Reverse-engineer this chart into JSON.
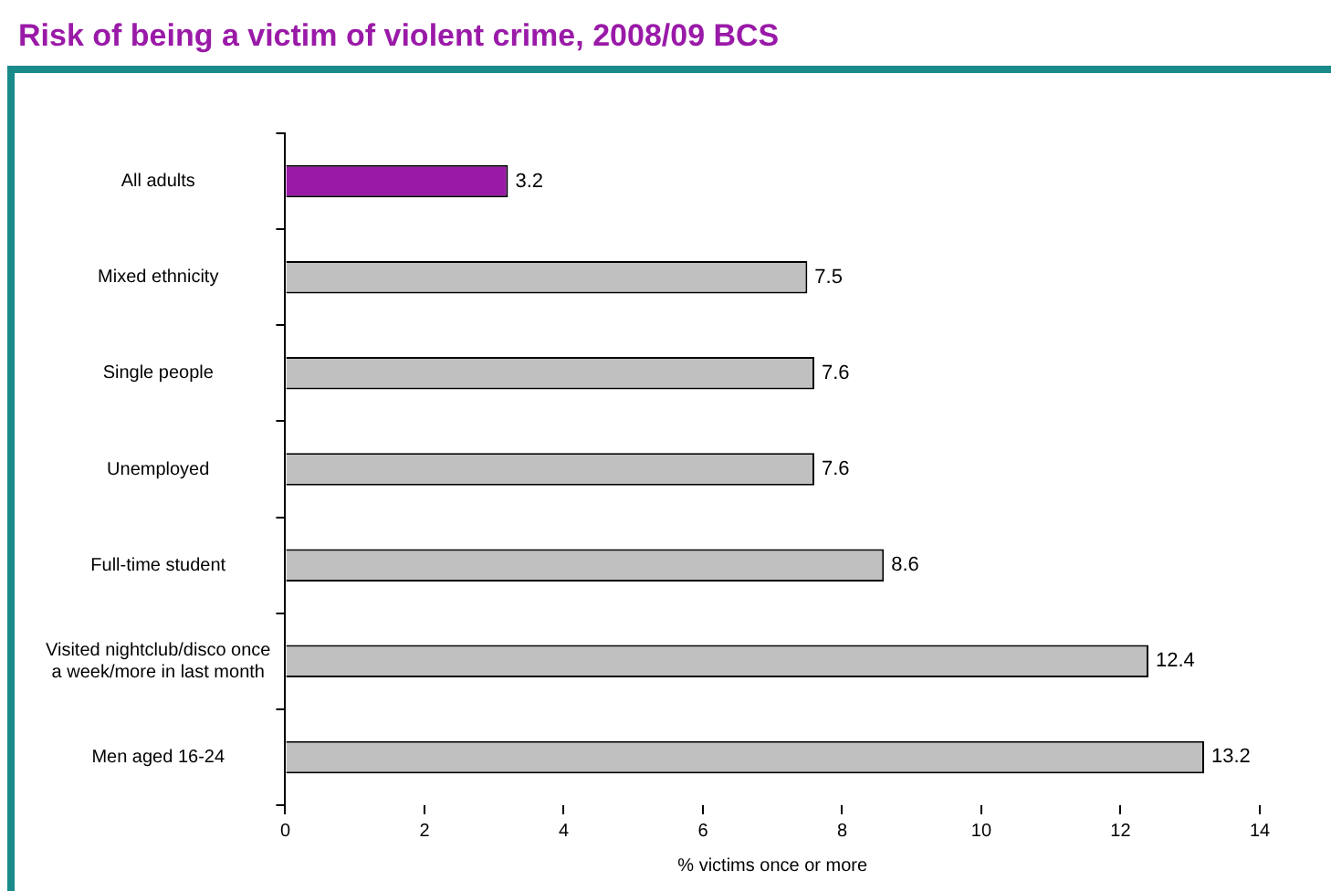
{
  "chart_data": {
    "type": "bar",
    "orientation": "horizontal",
    "title": "Risk of being a victim of violent crime, 2008/09 BCS",
    "xlabel": "% victims once or more",
    "categories": [
      "All adults",
      "Mixed ethnicity",
      "Single people",
      "Unemployed",
      "Full-time student",
      "Visited nightclub/disco once\na week/more in last month",
      "Men aged 16-24"
    ],
    "values": [
      3.2,
      7.5,
      7.6,
      7.6,
      8.6,
      12.4,
      13.2
    ],
    "colors": [
      "#9a1aa8",
      "#c0c0c0",
      "#c0c0c0",
      "#c0c0c0",
      "#c0c0c0",
      "#c0c0c0",
      "#c0c0c0"
    ],
    "xlim": [
      0,
      14
    ],
    "xticks": [
      0,
      2,
      4,
      6,
      8,
      10,
      12,
      14
    ],
    "data_labels": true,
    "grid": false,
    "legend": false
  }
}
